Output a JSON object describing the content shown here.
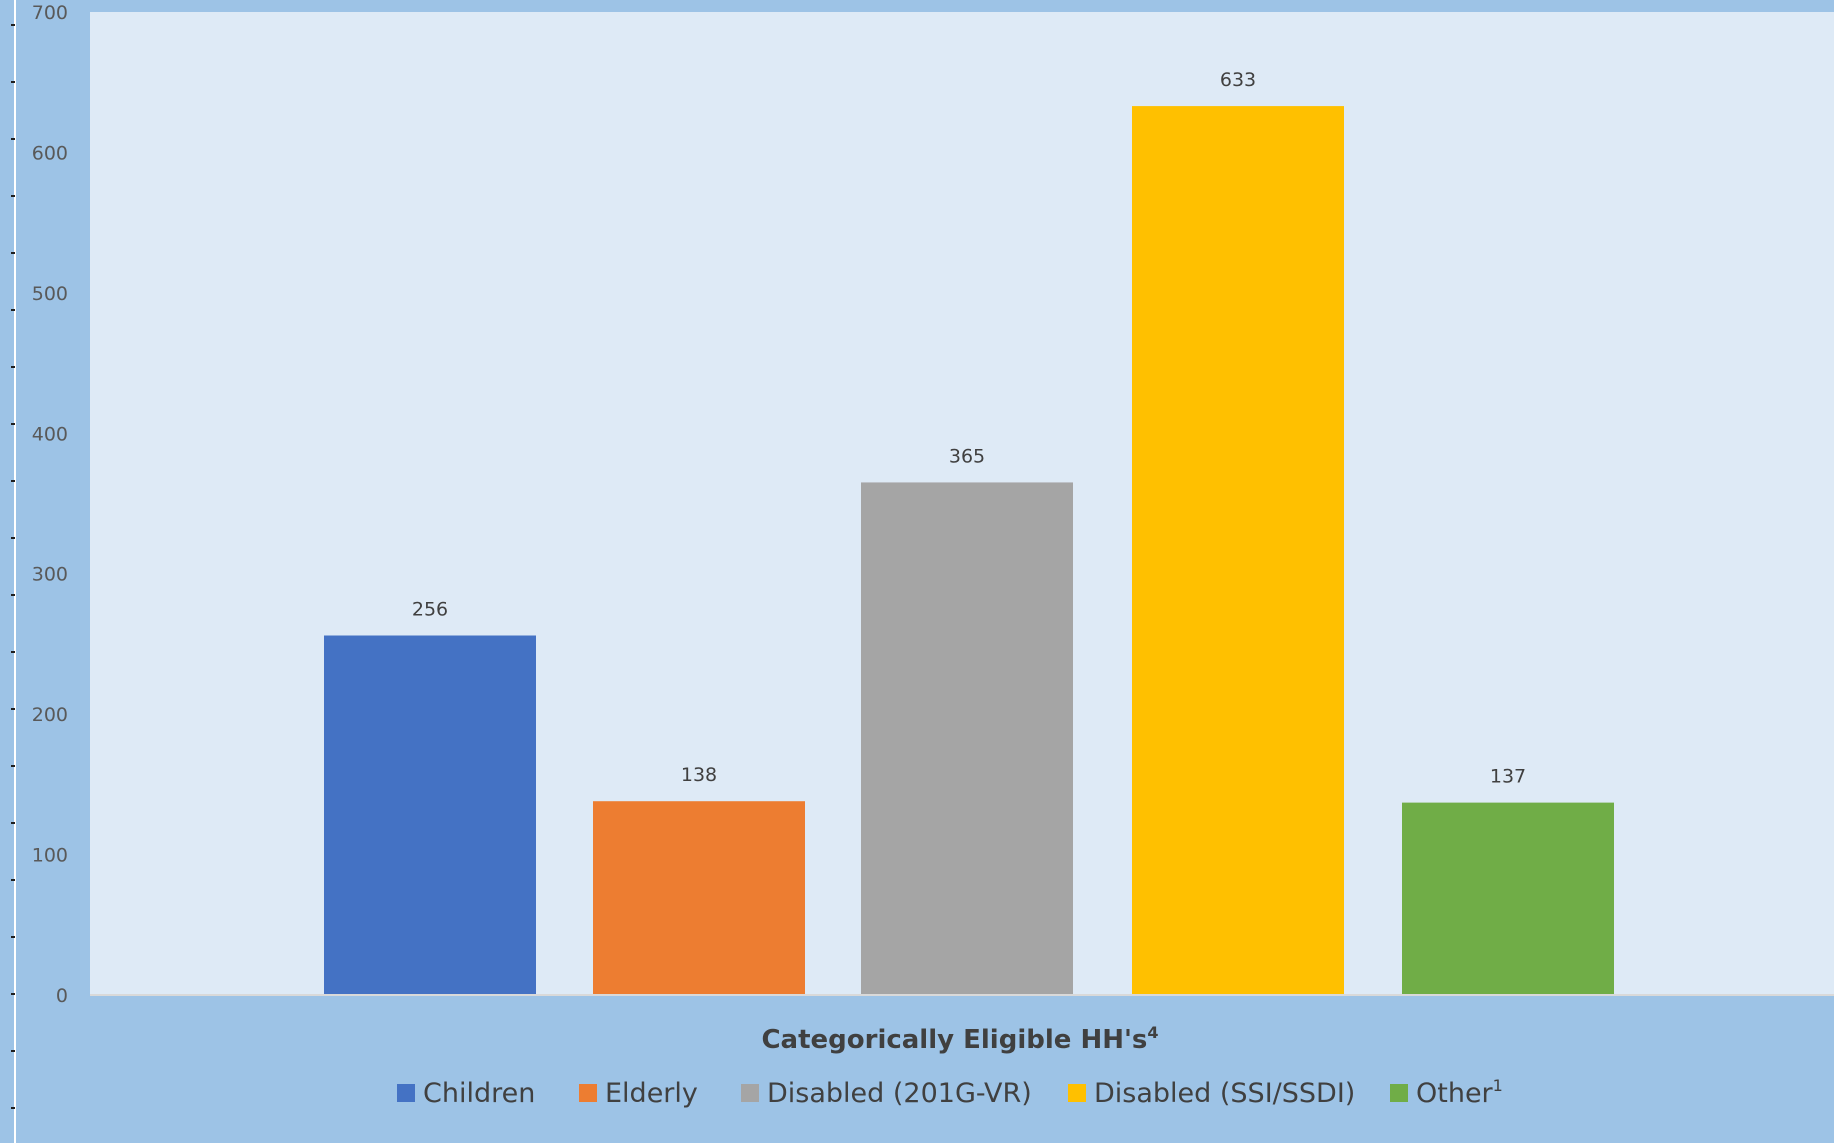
{
  "chart_data": {
    "type": "bar",
    "categories": [
      "Children",
      "Elderly",
      "Disabled (201G-VR)",
      "Disabled (SSI/SSDI)",
      "Other"
    ],
    "values": [
      256,
      138,
      365,
      633,
      137
    ],
    "data_labels": [
      "256",
      "138",
      "365",
      "633",
      "137"
    ],
    "xlabel": "Categorically Eligible HH's",
    "xlabel_superscript": "4",
    "ylim": [
      0,
      700
    ],
    "yticks": [
      0,
      100,
      200,
      300,
      400,
      500,
      600,
      700
    ],
    "grid": false,
    "legend_position": "bottom",
    "legend": [
      {
        "label": "Children",
        "sup": ""
      },
      {
        "label": "Elderly",
        "sup": ""
      },
      {
        "label": "Disabled (201G-VR)",
        "sup": ""
      },
      {
        "label": "Disabled (SSI/SSDI)",
        "sup": ""
      },
      {
        "label": "Other",
        "sup": "1"
      }
    ],
    "colors": [
      "#4472C4",
      "#ED7D31",
      "#A5A5A5",
      "#FFC000",
      "#70AD47"
    ],
    "background_color": "#9DC3E6",
    "plot_area_color": "#DEEAF6"
  }
}
